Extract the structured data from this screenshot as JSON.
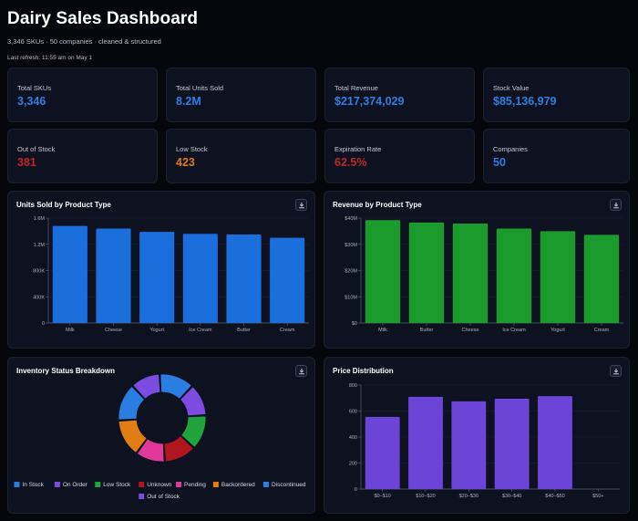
{
  "header": {
    "title": "Dairy Sales Dashboard",
    "subtitle": "3,346 SKUs · 50 companies · cleaned & structured",
    "last_refresh": "Last refresh: 11:55 am on May 1"
  },
  "kpis": [
    {
      "label": "Total SKUs",
      "value": "3,346",
      "color": "#2f7fe0"
    },
    {
      "label": "Total Units Sold",
      "value": "8.2M",
      "color": "#2f7fe0"
    },
    {
      "label": "Total Revenue",
      "value": "$217,374,029",
      "color": "#2f7fe0"
    },
    {
      "label": "Stock Value",
      "value": "$85,136,979",
      "color": "#2f7fe0"
    },
    {
      "label": "Out of Stock",
      "value": "381",
      "color": "#c0262b"
    },
    {
      "label": "Low Stock",
      "value": "423",
      "color": "#e07a1c"
    },
    {
      "label": "Expiration Rate",
      "value": "62.5%",
      "color": "#c0262b"
    },
    {
      "label": "Companies",
      "value": "50",
      "color": "#2f7fe0"
    }
  ],
  "panels": {
    "units_title": "Units Sold by Product Type",
    "revenue_title": "Revenue by Product Type",
    "inventory_title": "Inventory Status Breakdown",
    "price_title": "Price Distribution"
  },
  "chart_data": [
    {
      "type": "bar",
      "title": "Units Sold by Product Type",
      "categories": [
        "Milk",
        "Cheese",
        "Yogurt",
        "Ice Cream",
        "Butter",
        "Cream"
      ],
      "values": [
        1480000,
        1440000,
        1390000,
        1360000,
        1350000,
        1300000
      ],
      "ylim": [
        0,
        1600000
      ],
      "yticks": [
        0,
        400000,
        800000,
        1200000,
        1600000
      ],
      "ytick_labels": [
        "0",
        "400K",
        "800K",
        "1.2M",
        "1.6M"
      ],
      "color": "#1a6fdc",
      "grid": true
    },
    {
      "type": "bar",
      "title": "Revenue by Product Type",
      "categories": [
        "Milk",
        "Butter",
        "Cheese",
        "Ice Cream",
        "Yogurt",
        "Cream"
      ],
      "values": [
        39200000,
        38300000,
        37900000,
        36000000,
        35000000,
        33600000
      ],
      "ylim": [
        0,
        40000000
      ],
      "yticks": [
        0,
        10000000,
        20000000,
        30000000,
        40000000
      ],
      "ytick_labels": [
        "$0",
        "$10M",
        "$20M",
        "$30M",
        "$40M"
      ],
      "color": "#1a9b2b",
      "grid": true
    },
    {
      "type": "pie",
      "title": "Inventory Status Breakdown",
      "categories": [
        "In Stock",
        "On Order",
        "Low Stock",
        "Unknown",
        "Pending",
        "Backordered",
        "Discontinued",
        "Out of Stock"
      ],
      "values": [
        13,
        12,
        13,
        12,
        11,
        14,
        14,
        11
      ],
      "colors": [
        "#2a7de1",
        "#7c4ce0",
        "#1fa33a",
        "#b0161e",
        "#e0399a",
        "#e27c14",
        "#2a7de1",
        "#7c4ce0"
      ],
      "legend": "bottom"
    },
    {
      "type": "bar",
      "title": "Price Distribution",
      "categories": [
        "$0–$10",
        "$10–$20",
        "$20–$30",
        "$30–$40",
        "$40–$50",
        "$50+"
      ],
      "values": [
        555,
        710,
        675,
        695,
        715,
        0
      ],
      "ylim": [
        0,
        800
      ],
      "yticks": [
        0,
        200,
        400,
        600,
        800
      ],
      "ytick_labels": [
        "0",
        "200",
        "400",
        "600",
        "800"
      ],
      "color": "#6c45d8",
      "grid": true
    }
  ]
}
